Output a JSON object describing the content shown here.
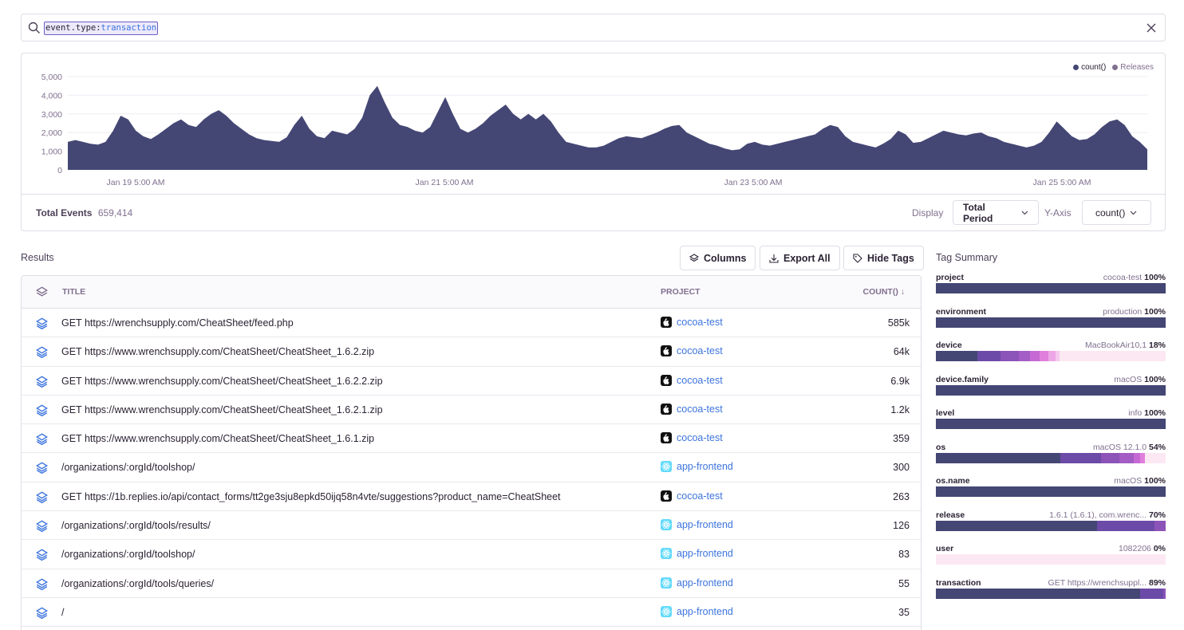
{
  "search": {
    "query_key": "event.type",
    "query_sep": ":",
    "query_value": "transaction"
  },
  "chart": {
    "legend": [
      {
        "label": "count()",
        "color": "#444674"
      },
      {
        "label": "Releases",
        "color": "#80708f"
      }
    ]
  },
  "chart_data": {
    "type": "area",
    "ylim": [
      0,
      5000
    ],
    "yticks": [
      "5,000",
      "4,000",
      "3,000",
      "2,000",
      "1,000",
      "0"
    ],
    "xticks": [
      "Jan 19 5:00 AM",
      "Jan 21 5:00 AM",
      "Jan 23 5:00 AM",
      "Jan 25 5:00 AM"
    ],
    "series": [
      {
        "name": "count()",
        "color": "#444674",
        "values": [
          1500,
          1600,
          1500,
          1400,
          1350,
          1500,
          2100,
          2900,
          2700,
          2100,
          1800,
          1650,
          1900,
          2200,
          2500,
          2700,
          2400,
          2300,
          2700,
          3000,
          3200,
          2900,
          2500,
          2200,
          1900,
          1700,
          1600,
          1550,
          1500,
          1750,
          2400,
          2900,
          2200,
          1800,
          1700,
          2100,
          2000,
          1900,
          2200,
          2800,
          4000,
          4500,
          3600,
          2800,
          2400,
          2300,
          2100,
          2000,
          2300,
          3100,
          3900,
          3000,
          2200,
          2000,
          2200,
          2500,
          2900,
          3200,
          3500,
          3000,
          2700,
          3000,
          2700,
          3000,
          2600,
          2000,
          1500,
          1400,
          1300,
          1200,
          1200,
          1300,
          1500,
          1700,
          1800,
          1750,
          1700,
          1850,
          2000,
          2200,
          2350,
          2400,
          2000,
          1800,
          1600,
          1400,
          1300,
          1150,
          1050,
          1100,
          1400,
          1500,
          1350,
          1300,
          1400,
          1500,
          1600,
          1700,
          1800,
          1900,
          2200,
          2400,
          2300,
          1800,
          1500,
          1400,
          1300,
          1200,
          1400,
          1650,
          2100,
          1900,
          1450,
          1500,
          1700,
          1900,
          2100,
          2000,
          1900,
          1850,
          1950,
          2000,
          1800,
          1700,
          1500,
          1400,
          1300,
          1200,
          1300,
          1500,
          2000,
          2600,
          2200,
          1800,
          1600,
          1650,
          1900,
          2300,
          2600,
          2700,
          2400,
          1800,
          1500,
          1100
        ]
      }
    ]
  },
  "totals": {
    "label": "Total Events",
    "value": "659,414"
  },
  "controls": {
    "display_label": "Display",
    "display_value": "Total Period",
    "yaxis_label": "Y-Axis",
    "yaxis_value": "count()"
  },
  "results": {
    "label": "Results",
    "buttons": {
      "columns": "Columns",
      "export": "Export All",
      "hide_tags": "Hide Tags"
    },
    "columns": {
      "title": "TITLE",
      "project": "PROJECT",
      "count": "COUNT() ↓"
    },
    "rows": [
      {
        "title": "GET https://wrenchsupply.com/CheatSheet/feed.php",
        "project": "cocoa-test",
        "platform": "apple",
        "count": "585k"
      },
      {
        "title": "GET https://www.wrenchsupply.com/CheatSheet/CheatSheet_1.6.2.zip",
        "project": "cocoa-test",
        "platform": "apple",
        "count": "64k"
      },
      {
        "title": "GET https://www.wrenchsupply.com/CheatSheet/CheatSheet_1.6.2.2.zip",
        "project": "cocoa-test",
        "platform": "apple",
        "count": "6.9k"
      },
      {
        "title": "GET https://www.wrenchsupply.com/CheatSheet/CheatSheet_1.6.2.1.zip",
        "project": "cocoa-test",
        "platform": "apple",
        "count": "1.2k"
      },
      {
        "title": "GET https://www.wrenchsupply.com/CheatSheet/CheatSheet_1.6.1.zip",
        "project": "cocoa-test",
        "platform": "apple",
        "count": "359"
      },
      {
        "title": "/organizations/:orgId/toolshop/",
        "project": "app-frontend",
        "platform": "react",
        "count": "300"
      },
      {
        "title": "GET https://1b.replies.io/api/contact_forms/tt2ge3sju8epkd50ijq58n4vte/suggestions?product_name=CheatSheet",
        "project": "cocoa-test",
        "platform": "apple",
        "count": "263"
      },
      {
        "title": "/organizations/:orgId/tools/results/",
        "project": "app-frontend",
        "platform": "react",
        "count": "126"
      },
      {
        "title": "/organizations/:orgId/toolshop/",
        "project": "app-frontend",
        "platform": "react",
        "count": "83"
      },
      {
        "title": "/organizations/:orgId/tools/queries/",
        "project": "app-frontend",
        "platform": "react",
        "count": "55"
      },
      {
        "title": "/",
        "project": "app-frontend",
        "platform": "react",
        "count": "35"
      }
    ]
  },
  "tag_summary": {
    "title": "Tag Summary",
    "tags": [
      {
        "name": "project",
        "top": "cocoa-test",
        "pct": "100%",
        "segments": [
          1.0
        ]
      },
      {
        "name": "environment",
        "top": "production",
        "pct": "100%",
        "segments": [
          1.0
        ]
      },
      {
        "name": "device",
        "top": "MacBookAir10,1",
        "pct": "18%",
        "segments": [
          0.18,
          0.1,
          0.08,
          0.05,
          0.04,
          0.04,
          0.03,
          0.02
        ]
      },
      {
        "name": "device.family",
        "top": "macOS",
        "pct": "100%",
        "segments": [
          1.0
        ]
      },
      {
        "name": "level",
        "top": "info",
        "pct": "100%",
        "segments": [
          1.0
        ]
      },
      {
        "name": "os",
        "top": "macOS 12.1.0",
        "pct": "54%",
        "segments": [
          0.54,
          0.18,
          0.08,
          0.06,
          0.03,
          0.02
        ]
      },
      {
        "name": "os.name",
        "top": "macOS",
        "pct": "100%",
        "segments": [
          1.0
        ]
      },
      {
        "name": "release",
        "top": "1.6.1 (1.6.1), com.wrenc...",
        "pct": "70%",
        "segments": [
          0.7,
          0.25,
          0.05
        ]
      },
      {
        "name": "user",
        "top": "1082206",
        "pct": "0%",
        "segments": []
      },
      {
        "name": "transaction",
        "top": "GET https://wrenchsuppl...",
        "pct": "89%",
        "segments": [
          0.89,
          0.1,
          0.01
        ]
      }
    ],
    "segment_colors": [
      "#444674",
      "#6c4aa8",
      "#8c53b8",
      "#a35dc4",
      "#c56ad4",
      "#e07fdc",
      "#eda6e6",
      "#f5c8ee"
    ]
  }
}
